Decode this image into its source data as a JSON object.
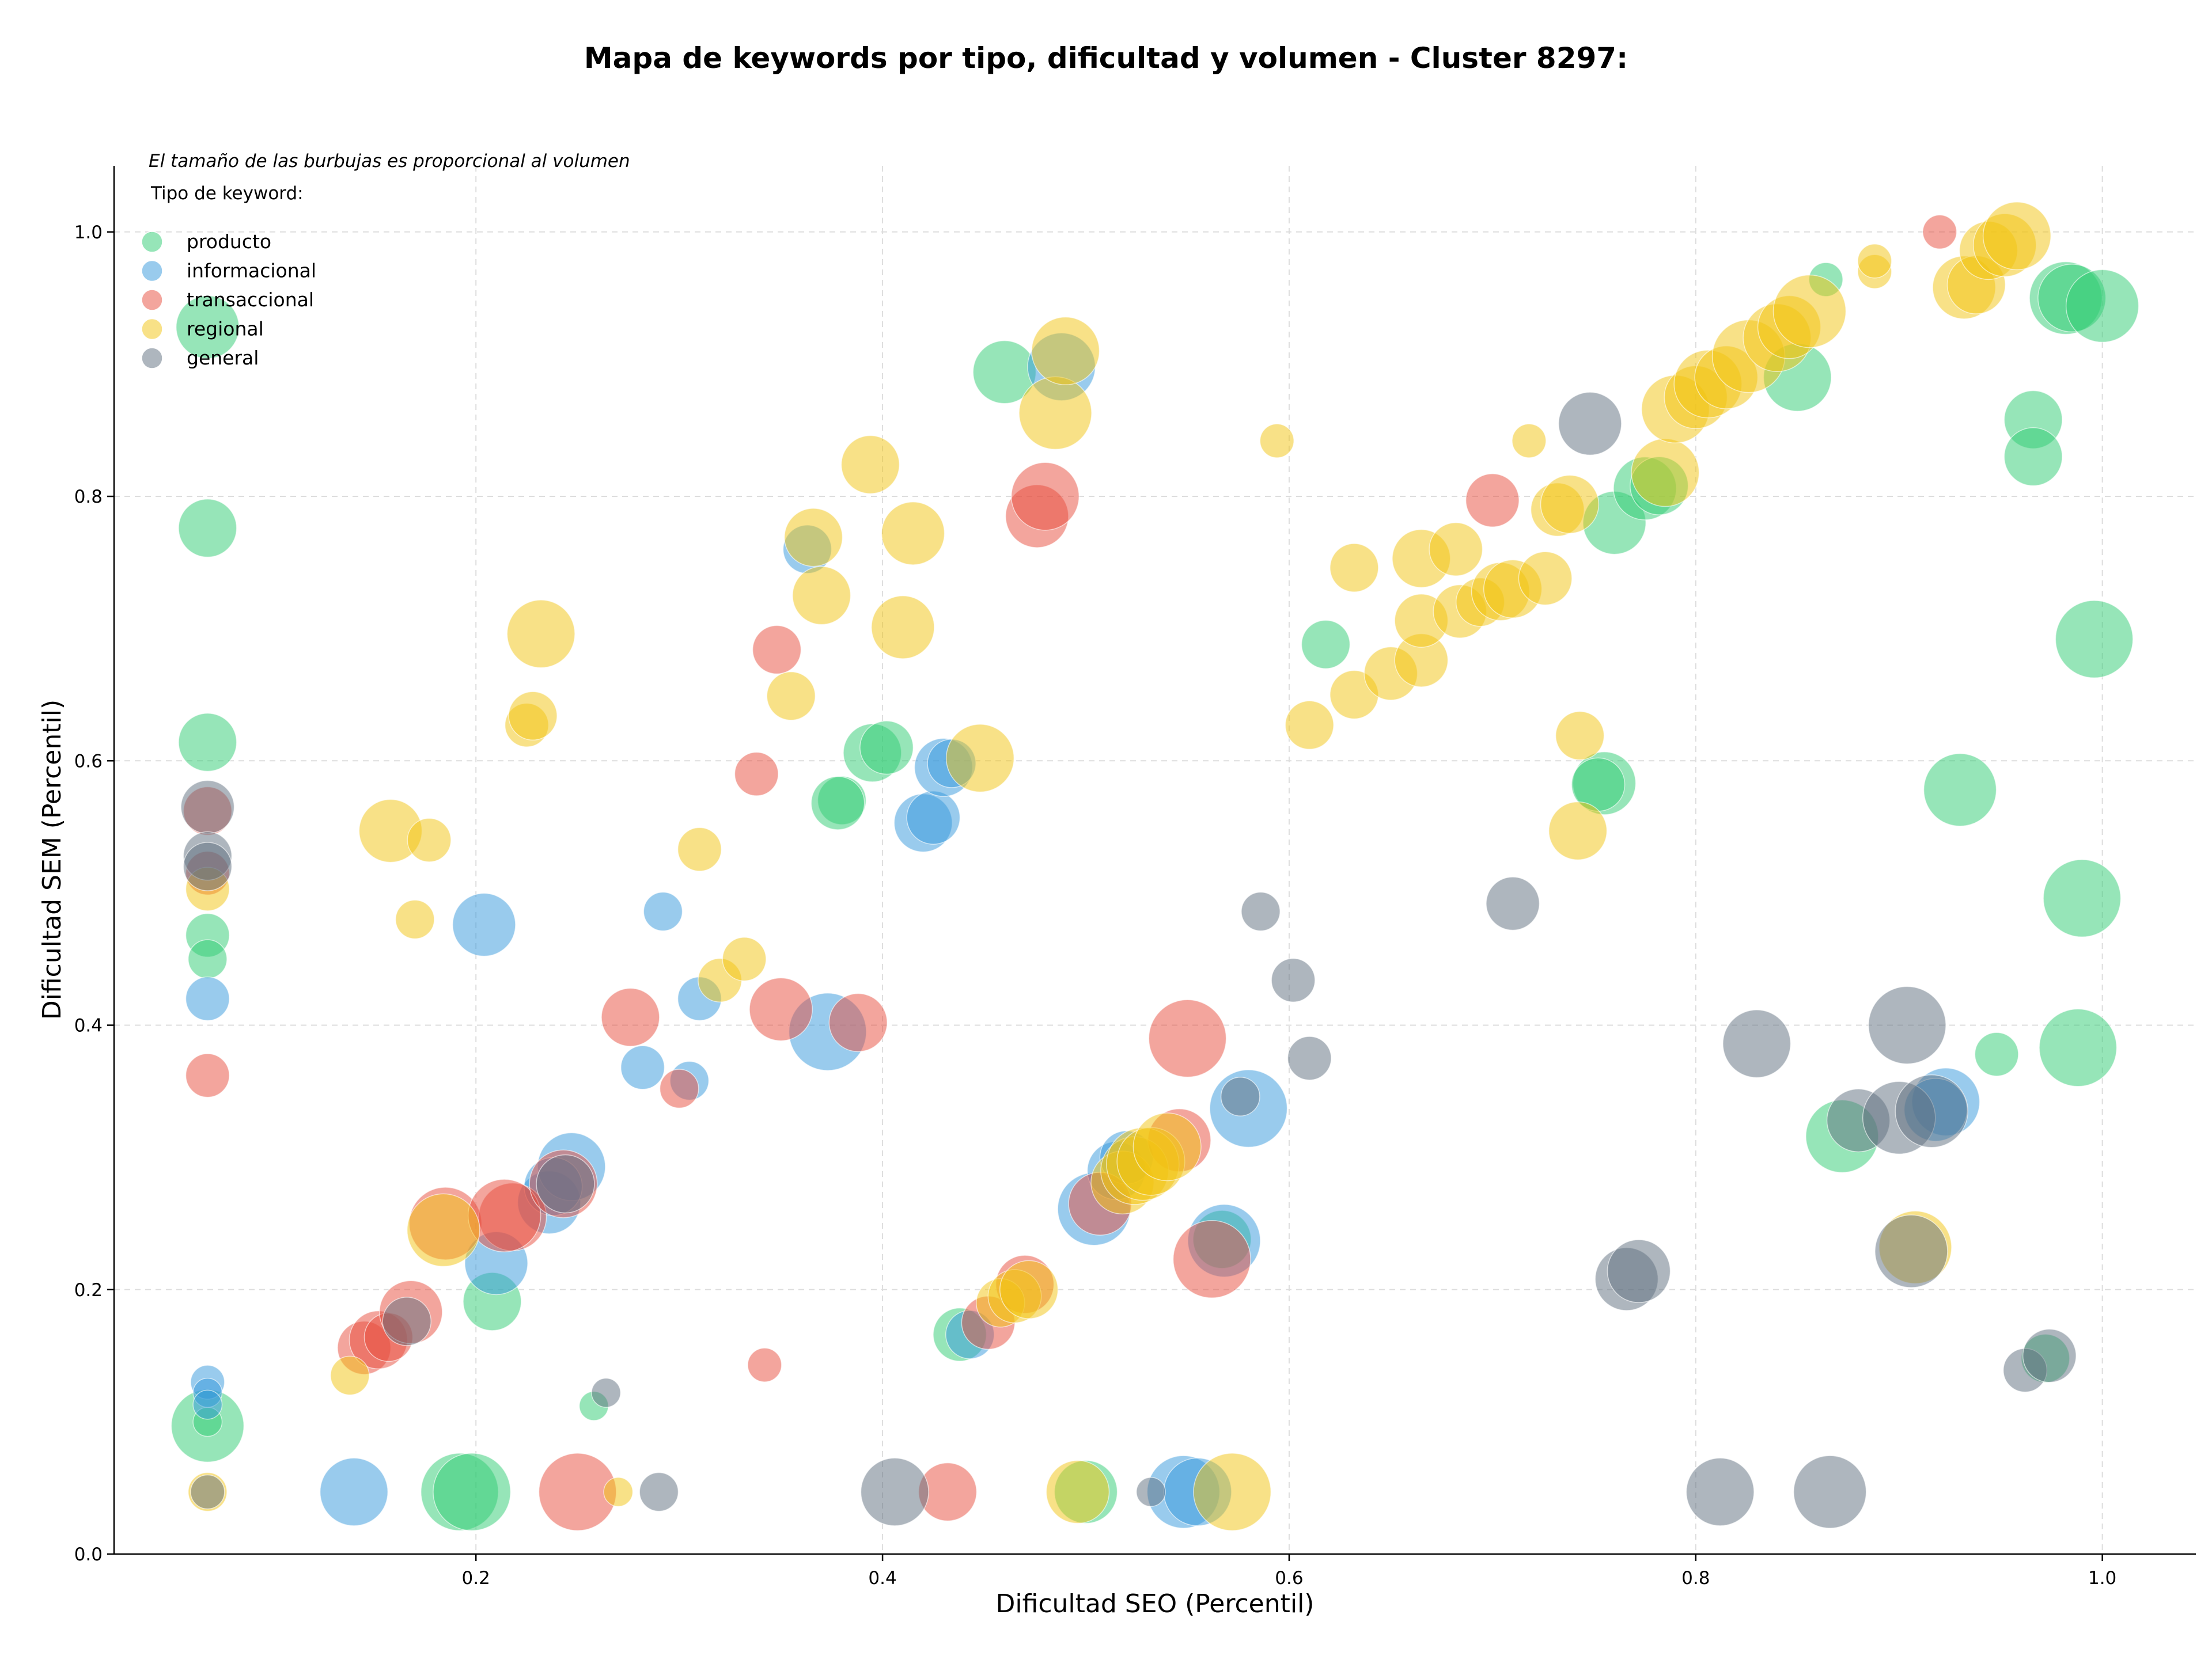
{
  "chart_data": {
    "type": "scatter",
    "title": "Mapa de keywords por tipo, dificultad y volumen - Cluster 8297:",
    "xlabel": "Dificultad SEO (Percentil)",
    "ylabel": "Dificultad SEM (Percentil)",
    "xlim": [
      0.022,
      1.046
    ],
    "ylim": [
      0.0,
      1.05
    ],
    "x_ticks": [
      "0.2",
      "0.4",
      "0.6",
      "0.8",
      "1.0"
    ],
    "x_tick_values": [
      0.2,
      0.4,
      0.6,
      0.8,
      1.0
    ],
    "y_ticks": [
      "0.0",
      "0.2",
      "0.4",
      "0.6",
      "0.8",
      "1.0"
    ],
    "y_tick_values": [
      0.0,
      0.2,
      0.4,
      0.6,
      0.8,
      1.0
    ],
    "grid": true,
    "legend_placement": "top-left",
    "note": "El tamaño de las burbujas es proporcional al volumen",
    "legend_title": "Tipo de keyword:",
    "series": [
      {
        "name": "producto",
        "color": "#2ecc71",
        "points": [
          [
            0.068,
            0.928,
            1.3
          ],
          [
            0.068,
            0.776,
            1.2
          ],
          [
            0.068,
            0.614,
            1.2
          ],
          [
            0.068,
            0.468,
            0.9
          ],
          [
            0.068,
            0.45,
            0.8
          ],
          [
            0.068,
            0.097,
            1.5
          ],
          [
            0.068,
            0.1,
            0.6
          ],
          [
            0.208,
            0.191,
            1.2
          ],
          [
            0.192,
            0.047,
            1.6
          ],
          [
            0.198,
            0.047,
            1.6
          ],
          [
            0.258,
            0.112,
            0.6
          ],
          [
            0.38,
            0.57,
            1.0
          ],
          [
            0.378,
            0.568,
            1.1
          ],
          [
            0.395,
            0.606,
            1.2
          ],
          [
            0.402,
            0.61,
            1.1
          ],
          [
            0.438,
            0.166,
            1.1
          ],
          [
            0.46,
            0.894,
            1.3
          ],
          [
            0.5,
            0.047,
            1.3
          ],
          [
            0.618,
            0.688,
            1.0
          ],
          [
            0.76,
            0.78,
            1.3
          ],
          [
            0.775,
            0.806,
            1.3
          ],
          [
            0.782,
            0.808,
            1.2
          ],
          [
            0.755,
            0.583,
            1.3
          ],
          [
            0.752,
            0.582,
            1.1
          ],
          [
            0.85,
            0.89,
            1.4
          ],
          [
            0.864,
            0.964,
            0.7
          ],
          [
            0.872,
            0.316,
            1.5
          ],
          [
            0.93,
            0.578,
            1.5
          ],
          [
            0.948,
            0.378,
            0.9
          ],
          [
            0.966,
            0.858,
            1.2
          ],
          [
            0.966,
            0.83,
            1.2
          ],
          [
            0.982,
            0.95,
            1.5
          ],
          [
            0.972,
            0.148,
            1.0
          ],
          [
            0.985,
            0.95,
            1.4
          ],
          [
            1.0,
            0.944,
            1.5
          ],
          [
            0.996,
            0.692,
            1.6
          ],
          [
            0.99,
            0.496,
            1.6
          ],
          [
            0.988,
            0.383,
            1.6
          ],
          [
            0.567,
            0.238,
            1.2
          ]
        ]
      },
      {
        "name": "informacional",
        "color": "#3498db",
        "points": [
          [
            0.068,
            0.42,
            0.9
          ],
          [
            0.068,
            0.13,
            0.7
          ],
          [
            0.068,
            0.122,
            0.6
          ],
          [
            0.068,
            0.113,
            0.6
          ],
          [
            0.14,
            0.047,
            1.4
          ],
          [
            0.204,
            0.476,
            1.3
          ],
          [
            0.21,
            0.22,
            1.3
          ],
          [
            0.236,
            0.266,
            1.3
          ],
          [
            0.247,
            0.293,
            1.4
          ],
          [
            0.238,
            0.278,
            1.2
          ],
          [
            0.282,
            0.368,
            0.9
          ],
          [
            0.292,
            0.486,
            0.8
          ],
          [
            0.31,
            0.42,
            0.9
          ],
          [
            0.305,
            0.358,
            0.8
          ],
          [
            0.363,
            0.76,
            1.0
          ],
          [
            0.373,
            0.395,
            1.6
          ],
          [
            0.42,
            0.553,
            1.2
          ],
          [
            0.425,
            0.557,
            1.1
          ],
          [
            0.43,
            0.595,
            1.2
          ],
          [
            0.434,
            0.598,
            1.0
          ],
          [
            0.443,
            0.166,
            1.0
          ],
          [
            0.488,
            0.898,
            1.4
          ],
          [
            0.504,
            0.261,
            1.5
          ],
          [
            0.515,
            0.29,
            1.2
          ],
          [
            0.52,
            0.3,
            1.1
          ],
          [
            0.548,
            0.047,
            1.5
          ],
          [
            0.555,
            0.047,
            1.4
          ],
          [
            0.568,
            0.237,
            1.5
          ],
          [
            0.58,
            0.337,
            1.6
          ],
          [
            0.923,
            0.342,
            1.4
          ],
          [
            0.918,
            0.336,
            1.3
          ]
        ]
      },
      {
        "name": "transaccional",
        "color": "#e74c3c",
        "points": [
          [
            0.068,
            0.362,
            0.9
          ],
          [
            0.068,
            0.562,
            1.0
          ],
          [
            0.068,
            0.515,
            0.9
          ],
          [
            0.145,
            0.156,
            1.1
          ],
          [
            0.152,
            0.162,
            1.2
          ],
          [
            0.157,
            0.164,
            1.0
          ],
          [
            0.168,
            0.183,
            1.3
          ],
          [
            0.185,
            0.25,
            1.5
          ],
          [
            0.218,
            0.255,
            1.4
          ],
          [
            0.214,
            0.256,
            1.5
          ],
          [
            0.243,
            0.28,
            1.4
          ],
          [
            0.25,
            0.047,
            1.6
          ],
          [
            0.276,
            0.406,
            1.2
          ],
          [
            0.3,
            0.352,
            0.8
          ],
          [
            0.338,
            0.59,
            0.9
          ],
          [
            0.342,
            0.143,
            0.7
          ],
          [
            0.348,
            0.684,
            1.0
          ],
          [
            0.35,
            0.412,
            1.3
          ],
          [
            0.388,
            0.402,
            1.2
          ],
          [
            0.432,
            0.047,
            1.2
          ],
          [
            0.452,
            0.175,
            1.1
          ],
          [
            0.47,
            0.204,
            1.2
          ],
          [
            0.476,
            0.785,
            1.3
          ],
          [
            0.48,
            0.8,
            1.4
          ],
          [
            0.507,
            0.265,
            1.3
          ],
          [
            0.546,
            0.313,
            1.3
          ],
          [
            0.55,
            0.39,
            1.6
          ],
          [
            0.562,
            0.223,
            1.6
          ],
          [
            0.7,
            0.797,
            1.1
          ],
          [
            0.92,
            1.0,
            0.7
          ]
        ]
      },
      {
        "name": "regional",
        "color": "#f1c40f",
        "points": [
          [
            0.068,
            0.047,
            0.8
          ],
          [
            0.068,
            0.503,
            0.9
          ],
          [
            0.138,
            0.135,
            0.8
          ],
          [
            0.158,
            0.547,
            1.3
          ],
          [
            0.17,
            0.48,
            0.8
          ],
          [
            0.177,
            0.54,
            0.9
          ],
          [
            0.184,
            0.245,
            1.5
          ],
          [
            0.225,
            0.627,
            0.9
          ],
          [
            0.228,
            0.634,
            1.0
          ],
          [
            0.232,
            0.696,
            1.4
          ],
          [
            0.27,
            0.047,
            0.6
          ],
          [
            0.31,
            0.533,
            0.9
          ],
          [
            0.32,
            0.434,
            0.9
          ],
          [
            0.332,
            0.45,
            0.9
          ],
          [
            0.355,
            0.649,
            1.0
          ],
          [
            0.366,
            0.769,
            1.2
          ],
          [
            0.37,
            0.725,
            1.2
          ],
          [
            0.394,
            0.824,
            1.2
          ],
          [
            0.41,
            0.701,
            1.3
          ],
          [
            0.415,
            0.772,
            1.3
          ],
          [
            0.448,
            0.602,
            1.4
          ],
          [
            0.458,
            0.19,
            1.0
          ],
          [
            0.465,
            0.195,
            1.1
          ],
          [
            0.472,
            0.2,
            1.2
          ],
          [
            0.485,
            0.863,
            1.5
          ],
          [
            0.49,
            0.91,
            1.4
          ],
          [
            0.496,
            0.047,
            1.3
          ],
          [
            0.518,
            0.281,
            1.3
          ],
          [
            0.524,
            0.29,
            1.4
          ],
          [
            0.528,
            0.295,
            1.5
          ],
          [
            0.532,
            0.297,
            1.4
          ],
          [
            0.54,
            0.308,
            1.4
          ],
          [
            0.572,
            0.047,
            1.6
          ],
          [
            0.594,
            0.842,
            0.7
          ],
          [
            0.61,
            0.627,
            1.0
          ],
          [
            0.632,
            0.65,
            1.0
          ],
          [
            0.632,
            0.746,
            1.0
          ],
          [
            0.65,
            0.666,
            1.1
          ],
          [
            0.665,
            0.753,
            1.2
          ],
          [
            0.665,
            0.676,
            1.1
          ],
          [
            0.665,
            0.706,
            1.1
          ],
          [
            0.682,
            0.76,
            1.1
          ],
          [
            0.684,
            0.713,
            1.1
          ],
          [
            0.694,
            0.72,
            1.0
          ],
          [
            0.704,
            0.728,
            1.2
          ],
          [
            0.71,
            0.73,
            1.2
          ],
          [
            0.718,
            0.842,
            0.7
          ],
          [
            0.726,
            0.738,
            1.1
          ],
          [
            0.732,
            0.79,
            1.1
          ],
          [
            0.738,
            0.794,
            1.2
          ],
          [
            0.742,
            0.547,
            1.2
          ],
          [
            0.743,
            0.619,
            1.0
          ],
          [
            0.785,
            0.818,
            1.4
          ],
          [
            0.79,
            0.866,
            1.4
          ],
          [
            0.8,
            0.875,
            1.3
          ],
          [
            0.806,
            0.885,
            1.4
          ],
          [
            0.815,
            0.89,
            1.3
          ],
          [
            0.826,
            0.906,
            1.5
          ],
          [
            0.84,
            0.92,
            1.4
          ],
          [
            0.846,
            0.928,
            1.3
          ],
          [
            0.856,
            0.94,
            1.5
          ],
          [
            0.888,
            0.97,
            0.7
          ],
          [
            0.888,
            0.978,
            0.7
          ],
          [
            0.932,
            0.958,
            1.3
          ],
          [
            0.938,
            0.96,
            1.2
          ],
          [
            0.944,
            0.986,
            1.2
          ],
          [
            0.952,
            0.99,
            1.3
          ],
          [
            0.958,
            0.997,
            1.4
          ],
          [
            0.908,
            0.232,
            1.5
          ]
        ]
      },
      {
        "name": "general",
        "color": "#5d6d7e",
        "points": [
          [
            0.068,
            0.565,
            1.1
          ],
          [
            0.068,
            0.528,
            1.0
          ],
          [
            0.068,
            0.52,
            1.0
          ],
          [
            0.068,
            0.047,
            0.7
          ],
          [
            0.166,
            0.176,
            1.0
          ],
          [
            0.244,
            0.28,
            1.2
          ],
          [
            0.264,
            0.122,
            0.6
          ],
          [
            0.29,
            0.047,
            0.8
          ],
          [
            0.406,
            0.047,
            1.4
          ],
          [
            0.532,
            0.047,
            0.6
          ],
          [
            0.576,
            0.346,
            0.8
          ],
          [
            0.586,
            0.486,
            0.8
          ],
          [
            0.602,
            0.434,
            0.9
          ],
          [
            0.61,
            0.375,
            0.9
          ],
          [
            0.71,
            0.492,
            1.1
          ],
          [
            0.748,
            0.855,
            1.3
          ],
          [
            0.766,
            0.208,
            1.3
          ],
          [
            0.772,
            0.214,
            1.3
          ],
          [
            0.812,
            0.047,
            1.4
          ],
          [
            0.83,
            0.386,
            1.4
          ],
          [
            0.866,
            0.047,
            1.5
          ],
          [
            0.88,
            0.328,
            1.3
          ],
          [
            0.9,
            0.33,
            1.5
          ],
          [
            0.906,
            0.229,
            1.5
          ],
          [
            0.904,
            0.4,
            1.6
          ],
          [
            0.916,
            0.335,
            1.5
          ],
          [
            0.962,
            0.139,
            0.9
          ],
          [
            0.974,
            0.15,
            1.1
          ]
        ]
      }
    ]
  }
}
